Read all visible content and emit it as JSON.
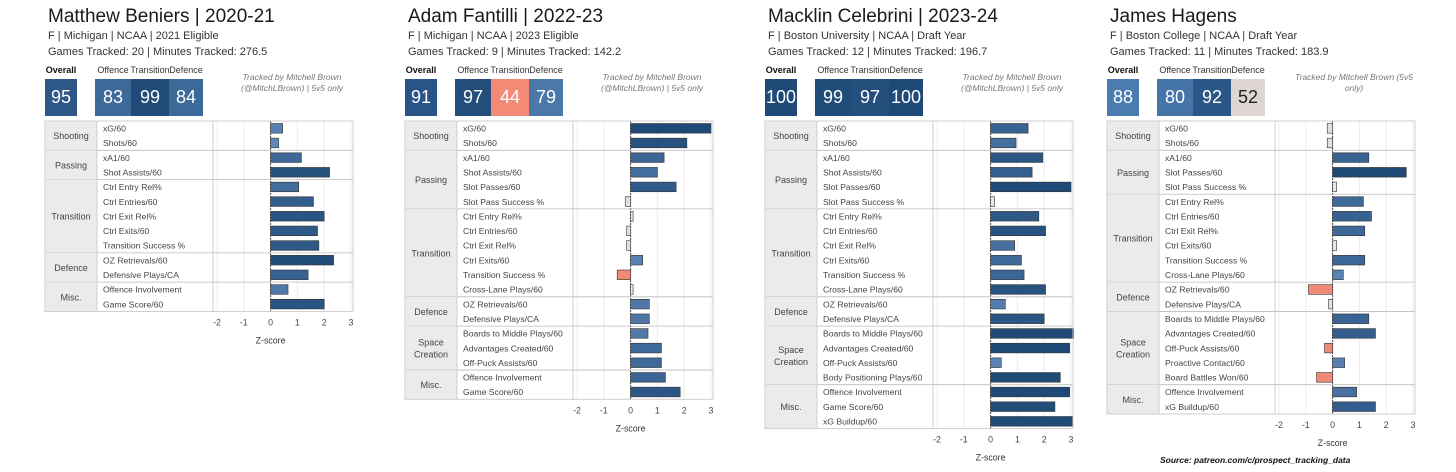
{
  "panels": [
    {
      "title": "Matthew Beniers | 2020-21",
      "subtitle": "F | Michigan | NCAA | 2021 Eligible",
      "games": "Games Tracked: 20 | Minutes Tracked: 276.5",
      "headers": {
        "overall": "Overall",
        "offence": "Offence",
        "transition": "Transition",
        "defence": "Defence"
      },
      "tiles": {
        "overall": "95",
        "offence": "83",
        "transition": "99",
        "defence": "84"
      },
      "tile_colors": {
        "overall": "#2c5786",
        "offence": "#3d6a98",
        "transition": "#224a76",
        "defence": "#3b6a9a"
      },
      "tracked_note": "Tracked by Mitchell Brown (@MitchLBrown) | 5v5 only"
    },
    {
      "title": "Adam Fantilli | 2022-23",
      "subtitle": "F | Michigan | NCAA | 2023 Eligible",
      "games": "Games Tracked: 9 | Minutes Tracked: 142.2",
      "headers": {
        "overall": "Overall",
        "offence": "Offence",
        "transition": "Transition",
        "defence": "Defence"
      },
      "tiles": {
        "overall": "91",
        "offence": "97",
        "transition": "44",
        "defence": "79"
      },
      "tile_colors": {
        "overall": "#2a5485",
        "offence": "#244d7a",
        "transition": "#f28a76",
        "defence": "#4a78a8"
      },
      "tracked_note": "Tracked by Mitchell Brown (@MitchLBrown) | 5v5 only"
    },
    {
      "title": "Macklin Celebrini | 2023-24",
      "subtitle": "F | Boston University | NCAA | Draft Year",
      "games": "Games Tracked: 12 | Minutes Tracked: 196.7",
      "headers": {
        "overall": "Overall",
        "offence": "Offence",
        "transition": "Transition",
        "defence": "Defence"
      },
      "tiles": {
        "overall": "100",
        "offence": "99",
        "transition": "97",
        "defence": "100"
      },
      "tile_colors": {
        "overall": "#1f4a78",
        "offence": "#214b78",
        "transition": "#244e7b",
        "defence": "#1f4a78"
      },
      "tracked_note": "Tracked by Mitchell Brown (@MitchLBrown) | 5v5 only"
    },
    {
      "title": "James Hagens",
      "subtitle": "F | Boston College | NCAA | Draft Year",
      "games": "Games Tracked: 11 | Minutes Tracked: 183.9",
      "headers": {
        "overall": "Overall",
        "offence": "Offence",
        "transition": "Transition",
        "defence": "Defence"
      },
      "tiles": {
        "overall": "88",
        "offence": "80",
        "transition": "92",
        "defence": "52"
      },
      "tile_colors": {
        "overall": "#4a7cb0",
        "offence": "#4574a8",
        "transition": "#2b5686",
        "defence": "#ddd6d2"
      },
      "tracked_note": "Tracked by Mitchell Brown (5v5 only)"
    }
  ],
  "chart_data": [
    {
      "type": "bar",
      "orientation": "horizontal",
      "xlabel": "Z-score",
      "xlim": [
        -2,
        3
      ],
      "xticks": [
        "-2",
        "-1",
        "0",
        "1",
        "2",
        "3"
      ],
      "groups": [
        {
          "name": "Shooting",
          "metrics": [
            {
              "label": "xG/60",
              "value": 0.45
            },
            {
              "label": "Shots/60",
              "value": 0.3
            }
          ]
        },
        {
          "name": "Passing",
          "metrics": [
            {
              "label": "xA1/60",
              "value": 1.15
            },
            {
              "label": "Shot Assists/60",
              "value": 2.2
            }
          ]
        },
        {
          "name": "Transition",
          "metrics": [
            {
              "label": "Ctrl Entry Rel%",
              "value": 1.05
            },
            {
              "label": "Ctrl Entries/60",
              "value": 1.6
            },
            {
              "label": "Ctrl Exit Rel%",
              "value": 2.0
            },
            {
              "label": "Ctrl Exits/60",
              "value": 1.75
            },
            {
              "label": "Transition Success %",
              "value": 1.8
            }
          ]
        },
        {
          "name": "Defence",
          "metrics": [
            {
              "label": "OZ Retrievals/60",
              "value": 2.35
            },
            {
              "label": "Defensive Plays/CA",
              "value": 1.4
            }
          ]
        },
        {
          "name": "Misc.",
          "metrics": [
            {
              "label": "Offence Involvement",
              "value": 0.65
            },
            {
              "label": "Game Score/60",
              "value": 2.0
            }
          ]
        }
      ]
    },
    {
      "type": "bar",
      "orientation": "horizontal",
      "xlabel": "Z-score",
      "xlim": [
        -2,
        3
      ],
      "xticks": [
        "-2",
        "-1",
        "0",
        "1",
        "2",
        "3"
      ],
      "groups": [
        {
          "name": "Shooting",
          "metrics": [
            {
              "label": "xG/60",
              "value": 3.0
            },
            {
              "label": "Shots/60",
              "value": 2.1
            }
          ]
        },
        {
          "name": "Passing",
          "metrics": [
            {
              "label": "xA1/60",
              "value": 1.25
            },
            {
              "label": "Shot Assists/60",
              "value": 1.0
            },
            {
              "label": "Slot Passes/60",
              "value": 1.7
            },
            {
              "label": "Slot Pass Success %",
              "value": -0.2
            }
          ]
        },
        {
          "name": "Transition",
          "metrics": [
            {
              "label": "Ctrl Entry Rel%",
              "value": 0.05
            },
            {
              "label": "Ctrl Entries/60",
              "value": -0.15
            },
            {
              "label": "Ctrl Exit Rel%",
              "value": -0.15
            },
            {
              "label": "Ctrl Exits/60",
              "value": 0.45
            },
            {
              "label": "Transition Success %",
              "value": -0.5
            },
            {
              "label": "Cross-Lane Plays/60",
              "value": 0.05
            }
          ]
        },
        {
          "name": "Defence",
          "metrics": [
            {
              "label": "OZ Retrievals/60",
              "value": 0.7
            },
            {
              "label": "Defensive Plays/CA",
              "value": 0.7
            }
          ]
        },
        {
          "name": "Space Creation",
          "metrics": [
            {
              "label": "Boards to Middle Plays/60",
              "value": 0.65
            },
            {
              "label": "Advantages Created/60",
              "value": 1.15
            },
            {
              "label": "Off-Puck Assists/60",
              "value": 1.15
            }
          ]
        },
        {
          "name": "Misc.",
          "metrics": [
            {
              "label": "Offence Involvement",
              "value": 1.3
            },
            {
              "label": "Game Score/60",
              "value": 1.85
            }
          ]
        }
      ]
    },
    {
      "type": "bar",
      "orientation": "horizontal",
      "xlabel": "Z-score",
      "xlim": [
        -2,
        3
      ],
      "xticks": [
        "-2",
        "-1",
        "0",
        "1",
        "2",
        "3"
      ],
      "groups": [
        {
          "name": "Shooting",
          "metrics": [
            {
              "label": "xG/60",
              "value": 1.4
            },
            {
              "label": "Shots/60",
              "value": 0.95
            }
          ]
        },
        {
          "name": "Passing",
          "metrics": [
            {
              "label": "xA1/60",
              "value": 1.95
            },
            {
              "label": "Shot Assists/60",
              "value": 1.55
            },
            {
              "label": "Slot Passes/60",
              "value": 3.0
            },
            {
              "label": "Slot Pass Success %",
              "value": 0.15
            }
          ]
        },
        {
          "name": "Transition",
          "metrics": [
            {
              "label": "Ctrl Entry Rel%",
              "value": 1.8
            },
            {
              "label": "Ctrl Entries/60",
              "value": 2.05
            },
            {
              "label": "Ctrl Exit Rel%",
              "value": 0.9
            },
            {
              "label": "Ctrl Exits/60",
              "value": 1.15
            },
            {
              "label": "Transition Success %",
              "value": 1.25
            },
            {
              "label": "Cross-Lane Plays/60",
              "value": 2.05
            }
          ]
        },
        {
          "name": "Defence",
          "metrics": [
            {
              "label": "OZ Retrievals/60",
              "value": 0.55
            },
            {
              "label": "Defensive Plays/CA",
              "value": 2.0
            }
          ]
        },
        {
          "name": "Space Creation",
          "metrics": [
            {
              "label": "Boards to Middle Plays/60",
              "value": 3.1
            },
            {
              "label": "Advantages Created/60",
              "value": 2.95
            },
            {
              "label": "Off-Puck Assists/60",
              "value": 0.4
            },
            {
              "label": "Body Positioning Plays/60",
              "value": 2.6
            }
          ]
        },
        {
          "name": "Misc.",
          "metrics": [
            {
              "label": "Offence Involvement",
              "value": 2.95
            },
            {
              "label": "Game Score/60",
              "value": 2.4
            },
            {
              "label": "xG Buildup/60",
              "value": 3.05
            }
          ]
        }
      ]
    },
    {
      "type": "bar",
      "orientation": "horizontal",
      "xlabel": "Z-score",
      "xlim": [
        -2,
        3
      ],
      "xticks": [
        "-2",
        "-1",
        "0",
        "1",
        "2",
        "3"
      ],
      "groups": [
        {
          "name": "Shooting",
          "metrics": [
            {
              "label": "xG/60",
              "value": -0.2
            },
            {
              "label": "Shots/60",
              "value": -0.2
            }
          ]
        },
        {
          "name": "Passing",
          "metrics": [
            {
              "label": "xA1/60",
              "value": 1.35
            },
            {
              "label": "Slot Passes/60",
              "value": 2.75
            },
            {
              "label": "Slot Pass Success %",
              "value": 0.15
            }
          ]
        },
        {
          "name": "Transition",
          "metrics": [
            {
              "label": "Ctrl Entry Rel%",
              "value": 1.15
            },
            {
              "label": "Ctrl Entries/60",
              "value": 1.45
            },
            {
              "label": "Ctrl Exit Rel%",
              "value": 1.2
            },
            {
              "label": "Ctrl Exits/60",
              "value": 0.15
            },
            {
              "label": "Transition Success %",
              "value": 1.2
            },
            {
              "label": "Cross-Lane Plays/60",
              "value": 0.4
            }
          ]
        },
        {
          "name": "Defence",
          "metrics": [
            {
              "label": "OZ Retrievals/60",
              "value": -0.9
            },
            {
              "label": "Defensive Plays/CA",
              "value": -0.15
            }
          ]
        },
        {
          "name": "Space Creation",
          "metrics": [
            {
              "label": "Boards to Middle Plays/60",
              "value": 1.35
            },
            {
              "label": "Advantages Created/60",
              "value": 1.6
            },
            {
              "label": "Off-Puck Assists/60",
              "value": -0.3
            },
            {
              "label": "Proactive Contact/60",
              "value": 0.45
            },
            {
              "label": "Board Battles Won/60",
              "value": -0.6
            }
          ]
        },
        {
          "name": "Misc.",
          "metrics": [
            {
              "label": "Offence Involvement",
              "value": 0.9
            },
            {
              "label": "xG Buildup/60",
              "value": 1.6
            }
          ]
        }
      ]
    }
  ],
  "source": "Source: patreon.com/c/prospect_tracking_data"
}
